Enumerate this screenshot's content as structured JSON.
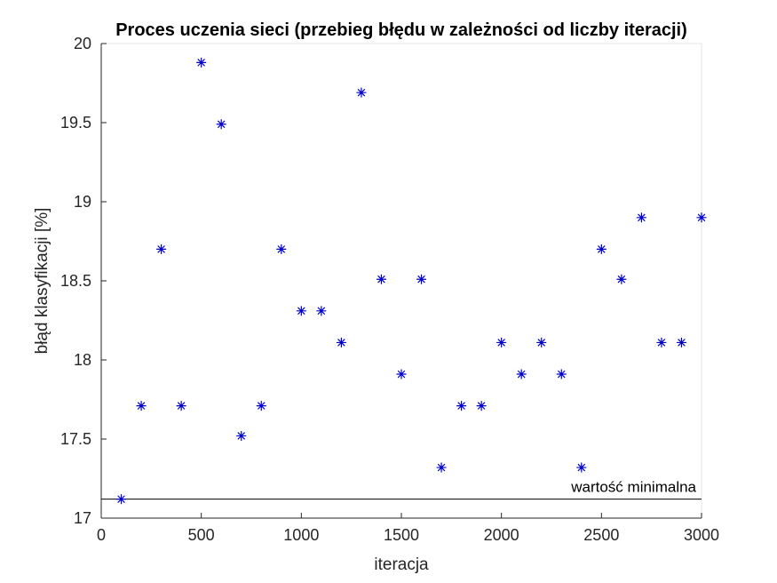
{
  "chart_data": {
    "type": "scatter",
    "title": "Proces uczenia sieci (przebieg błędu w zależności od liczby iteracji)",
    "xlabel": "iteracja",
    "ylabel": "błąd klasyfikacji [%]",
    "xlim": [
      0,
      3000
    ],
    "ylim": [
      17,
      20
    ],
    "xticks": [
      "0",
      "500",
      "1000",
      "1500",
      "2000",
      "2500",
      "3000"
    ],
    "yticks": [
      "17",
      "17.5",
      "18",
      "18.5",
      "19",
      "19.5",
      "20"
    ],
    "grid": false,
    "marker": "asterisk",
    "series": [
      {
        "color": "#0000cc",
        "x": [
          100,
          200,
          300,
          400,
          500,
          600,
          700,
          800,
          900,
          1000,
          1100,
          1200,
          1300,
          1400,
          1500,
          1600,
          1700,
          1800,
          1900,
          2000,
          2100,
          2200,
          2300,
          2400,
          2500,
          2600,
          2700,
          2800,
          2900,
          3000
        ],
        "y": [
          17.12,
          17.71,
          18.7,
          17.71,
          19.88,
          19.49,
          17.52,
          17.71,
          18.7,
          18.31,
          18.31,
          18.11,
          19.69,
          18.51,
          17.91,
          18.51,
          17.32,
          17.71,
          17.71,
          18.11,
          17.91,
          18.11,
          17.91,
          17.32,
          18.7,
          18.51,
          18.9,
          18.11,
          18.11,
          18.9
        ]
      }
    ],
    "reference_line": {
      "y": 17.12,
      "label": "wartość minimalna",
      "color": "#000000"
    }
  }
}
